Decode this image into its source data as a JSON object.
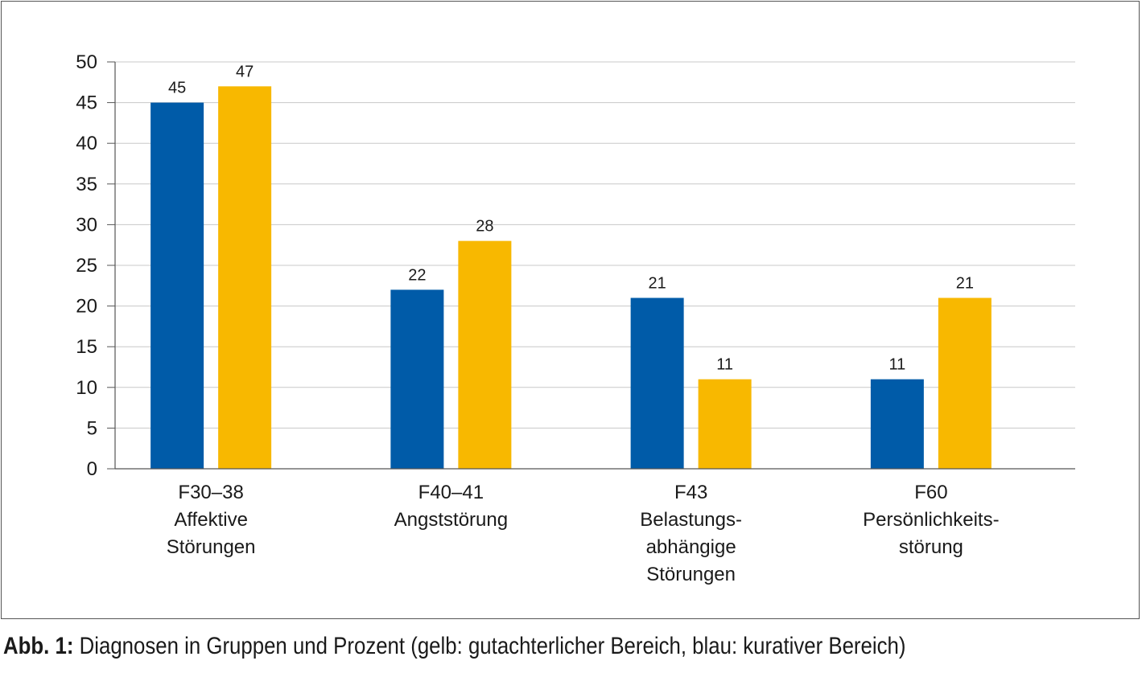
{
  "chart_data": {
    "type": "bar",
    "categories": [
      [
        "F30–38",
        "Affektive",
        "Störungen"
      ],
      [
        "F40–41",
        "Angststörung"
      ],
      [
        "F43",
        "Belastungs-",
        "abhängige",
        "Störungen"
      ],
      [
        "F60",
        "Persönlichkeits-",
        "störung"
      ]
    ],
    "series": [
      {
        "color": "#005BA8",
        "values": [
          45,
          22,
          21,
          11
        ]
      },
      {
        "color": "#F8B800",
        "values": [
          47,
          28,
          11,
          21
        ]
      }
    ],
    "ylim": [
      0,
      50
    ],
    "yticks": [
      0,
      5,
      10,
      15,
      20,
      25,
      30,
      35,
      40,
      45,
      50
    ],
    "grid": true,
    "data_labels": true
  },
  "caption": {
    "lead": "Abb. 1:",
    "text": " Diagnosen in Gruppen und Prozent (gelb: gutachterlicher Bereich, blau: kurativer Bereich)"
  }
}
